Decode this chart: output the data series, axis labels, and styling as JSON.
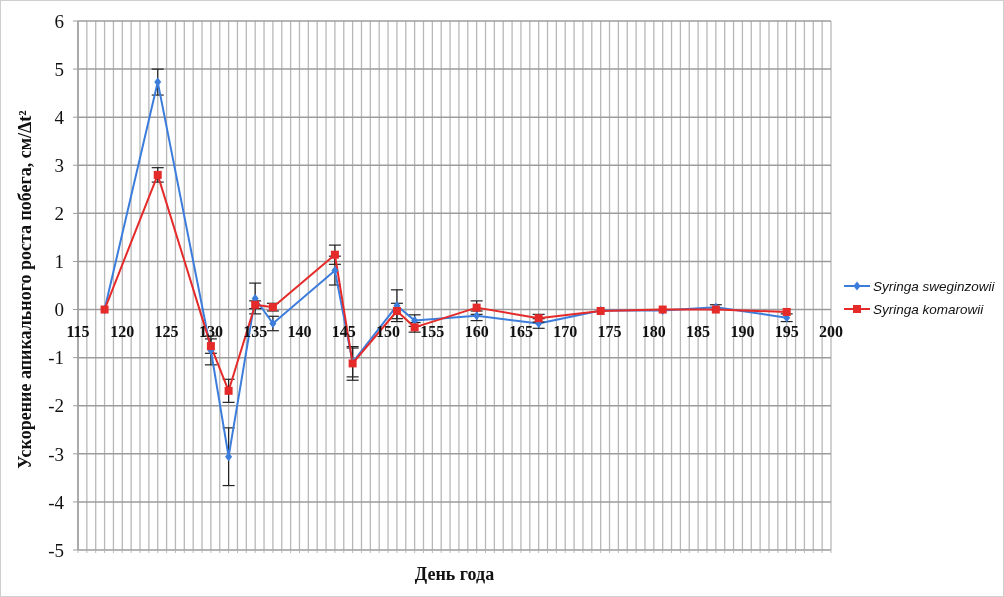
{
  "chart_data": {
    "type": "line",
    "xlabel": "День года",
    "ylabel": "Ускорение апикального роста побега, см/Δt²",
    "x": [
      118,
      124,
      130,
      132,
      135,
      137,
      144,
      146,
      151,
      153,
      160,
      167,
      174,
      181,
      187,
      195
    ],
    "series": [
      {
        "name": "Syringa sweginzowii",
        "color": "#3c7ddc",
        "marker": "diamond",
        "values": [
          0,
          4.73,
          -0.85,
          -3.06,
          0.23,
          -0.29,
          0.81,
          -1.1,
          0.08,
          -0.23,
          -0.13,
          -0.29,
          -0.02,
          -0.02,
          0.05,
          -0.17
        ],
        "errors": [
          null,
          0.27,
          0.3,
          0.6,
          0.32,
          0.15,
          0.3,
          0.3,
          0.33,
          0.12,
          0.1,
          0.1,
          null,
          null,
          0.05,
          0.08
        ]
      },
      {
        "name": "Syringa komarowii",
        "color": "#e52a2a",
        "marker": "square",
        "values": [
          0,
          2.8,
          -0.76,
          -1.69,
          0.1,
          0.05,
          1.14,
          -1.12,
          -0.03,
          -0.37,
          0.04,
          -0.18,
          -0.03,
          0,
          0,
          -0.05
        ],
        "errors": [
          null,
          0.15,
          0.15,
          0.24,
          0.08,
          0.08,
          0.2,
          0.35,
          0.16,
          0.1,
          0.14,
          0.08,
          null,
          null,
          null,
          null
        ]
      }
    ],
    "xlim": [
      115,
      200
    ],
    "xticks": [
      115,
      {
        "value": 116,
        "label": null
      },
      {
        "value": 117,
        "label": null
      },
      {
        "value": 118,
        "label": null
      },
      {
        "value": 119,
        "label": null
      },
      120,
      {
        "value": 121,
        "label": null
      },
      {
        "value": 122,
        "label": null
      },
      {
        "value": 123,
        "label": null
      },
      {
        "value": 124,
        "label": null
      },
      125,
      {
        "value": 126,
        "label": null
      },
      {
        "value": 127,
        "label": null
      },
      {
        "value": 128,
        "label": null
      },
      {
        "value": 129,
        "label": null
      },
      130,
      {
        "value": 131,
        "label": null
      },
      {
        "value": 132,
        "label": null
      },
      {
        "value": 133,
        "label": null
      },
      {
        "value": 134,
        "label": null
      },
      135,
      {
        "value": 136,
        "label": null
      },
      {
        "value": 137,
        "label": null
      },
      {
        "value": 138,
        "label": null
      },
      {
        "value": 139,
        "label": null
      },
      140,
      {
        "value": 141,
        "label": null
      },
      {
        "value": 142,
        "label": null
      },
      {
        "value": 143,
        "label": null
      },
      {
        "value": 144,
        "label": null
      },
      145,
      {
        "value": 146,
        "label": null
      },
      {
        "value": 147,
        "label": null
      },
      {
        "value": 148,
        "label": null
      },
      {
        "value": 149,
        "label": null
      },
      150,
      {
        "value": 151,
        "label": null
      },
      {
        "value": 152,
        "label": null
      },
      {
        "value": 153,
        "label": null
      },
      {
        "value": 154,
        "label": null
      },
      155,
      {
        "value": 156,
        "label": null
      },
      {
        "value": 157,
        "label": null
      },
      {
        "value": 158,
        "label": null
      },
      {
        "value": 159,
        "label": null
      },
      160,
      {
        "value": 161,
        "label": null
      },
      {
        "value": 162,
        "label": null
      },
      {
        "value": 163,
        "label": null
      },
      {
        "value": 164,
        "label": null
      },
      165,
      {
        "value": 166,
        "label": null
      },
      {
        "value": 167,
        "label": null
      },
      {
        "value": 168,
        "label": null
      },
      {
        "value": 169,
        "label": null
      },
      170,
      {
        "value": 171,
        "label": null
      },
      {
        "value": 172,
        "label": null
      },
      {
        "value": 173,
        "label": null
      },
      {
        "value": 174,
        "label": null
      },
      175,
      {
        "value": 176,
        "label": null
      },
      {
        "value": 177,
        "label": null
      },
      {
        "value": 178,
        "label": null
      },
      {
        "value": 179,
        "label": null
      },
      180,
      {
        "value": 181,
        "label": null
      },
      {
        "value": 182,
        "label": null
      },
      {
        "value": 183,
        "label": null
      },
      {
        "value": 184,
        "label": null
      },
      185,
      {
        "value": 186,
        "label": null
      },
      {
        "value": 187,
        "label": null
      },
      {
        "value": 188,
        "label": null
      },
      {
        "value": 189,
        "label": null
      },
      190,
      {
        "value": 191,
        "label": null
      },
      {
        "value": 192,
        "label": null
      },
      {
        "value": 193,
        "label": null
      },
      {
        "value": 194,
        "label": null
      },
      195,
      {
        "value": 196,
        "label": null
      },
      {
        "value": 197,
        "label": null
      },
      {
        "value": 198,
        "label": null
      },
      {
        "value": 199,
        "label": null
      },
      200
    ],
    "ylim": [
      -5,
      6
    ],
    "yticks": [
      -5,
      -4,
      -3,
      -2,
      -1,
      0,
      1,
      2,
      3,
      4,
      5,
      6
    ],
    "grid": true,
    "legend": "right"
  }
}
